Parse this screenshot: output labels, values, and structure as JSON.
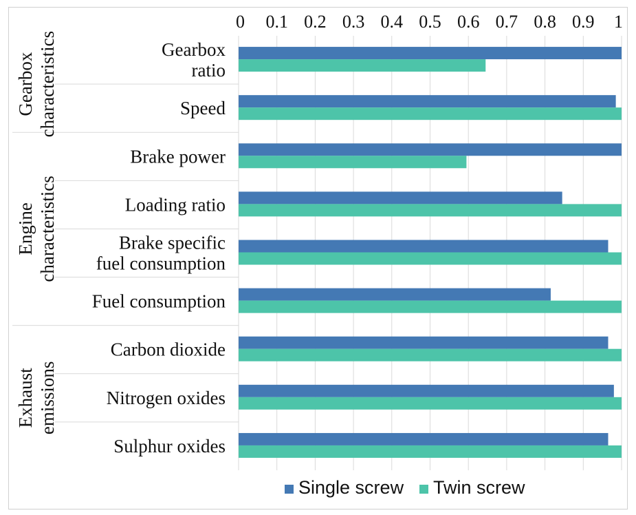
{
  "chart_data": {
    "type": "bar",
    "orientation": "horizontal",
    "xlim": [
      0,
      1
    ],
    "x_ticks": [
      "0",
      "0.1",
      "0.2",
      "0.3",
      "0.4",
      "0.5",
      "0.6",
      "0.7",
      "0.8",
      "0.9",
      "1"
    ],
    "x_axis_position": "top",
    "grid": true,
    "legend_position": "bottom",
    "groups": [
      {
        "label": "Gearbox characteristics",
        "lines": [
          "Gearbox",
          "characteristics"
        ],
        "categories": 2
      },
      {
        "label": "Engine characteristics",
        "lines": [
          "Engine",
          "characteristics"
        ],
        "categories": 4
      },
      {
        "label": "Exhaust emissions",
        "lines": [
          "Exhaust",
          "emissions"
        ],
        "categories": 3
      }
    ],
    "categories": [
      {
        "label": "Gearbox ratio",
        "lines": [
          "Gearbox",
          "ratio"
        ]
      },
      {
        "label": "Speed",
        "lines": [
          "Speed"
        ]
      },
      {
        "label": "Brake power",
        "lines": [
          "Brake power"
        ]
      },
      {
        "label": "Loading ratio",
        "lines": [
          "Loading ratio"
        ]
      },
      {
        "label": "Brake specific fuel consumption",
        "lines": [
          "Brake specific",
          "fuel consumption"
        ]
      },
      {
        "label": "Fuel consumption",
        "lines": [
          "Fuel consumption"
        ]
      },
      {
        "label": "Carbon dioxide",
        "lines": [
          "Carbon dioxide"
        ]
      },
      {
        "label": "Nitrogen oxides",
        "lines": [
          "Nitrogen oxides"
        ]
      },
      {
        "label": "Sulphur oxides",
        "lines": [
          "Sulphur oxides"
        ]
      }
    ],
    "series": [
      {
        "name": "Single screw",
        "color": "#4479b4",
        "values": [
          1.0,
          0.985,
          1.0,
          0.845,
          0.965,
          0.815,
          0.965,
          0.98,
          0.965
        ]
      },
      {
        "name": "Twin screw",
        "color": "#4dc4a9",
        "values": [
          0.645,
          1.0,
          0.595,
          1.0,
          1.0,
          1.0,
          1.0,
          1.0,
          1.0
        ]
      }
    ]
  }
}
